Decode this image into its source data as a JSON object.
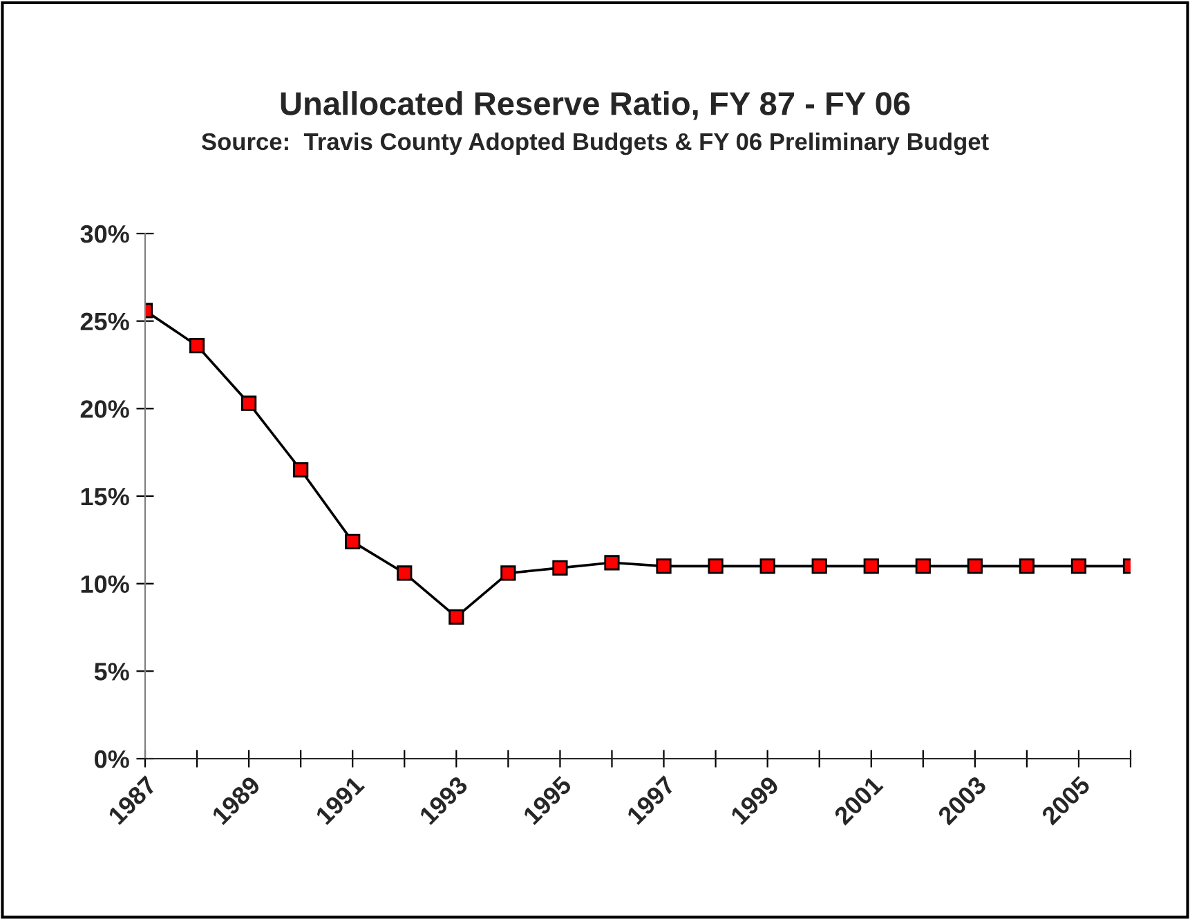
{
  "chart_data": {
    "type": "line",
    "title": "Unallocated Reserve Ratio, FY 87 - FY 06",
    "subtitle": "Source:  Travis County Adopted Budgets & FY 06 Preliminary Budget",
    "categories": [
      "1987",
      null,
      "1989",
      null,
      "1991",
      null,
      "1993",
      null,
      "1995",
      null,
      "1997",
      null,
      "1999",
      null,
      "2001",
      null,
      "2003",
      null,
      "2005",
      null
    ],
    "series": [
      {
        "color": "#ff0000",
        "values": [
          25.6,
          23.6,
          20.3,
          16.5,
          12.4,
          10.6,
          8.1,
          10.6,
          10.9,
          11.2,
          11.0,
          11.0,
          11.0,
          11.0,
          11.0,
          11.0,
          11.0,
          11.0,
          11.0,
          11.0
        ]
      }
    ],
    "ylim": [
      0,
      30
    ],
    "yticks": [
      {
        "value": 0,
        "label": "0%"
      },
      {
        "value": 5,
        "label": "5%"
      },
      {
        "value": 10,
        "label": "10%"
      },
      {
        "value": 15,
        "label": "15%"
      },
      {
        "value": 20,
        "label": "20%"
      },
      {
        "value": 25,
        "label": "25%"
      },
      {
        "value": 30,
        "label": "30%"
      }
    ],
    "marker": "square",
    "line_style": "solid",
    "grid": false,
    "legend": false
  }
}
